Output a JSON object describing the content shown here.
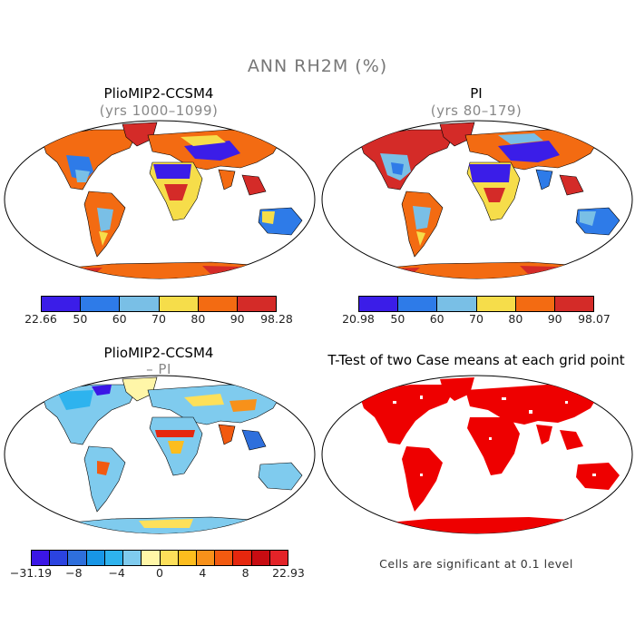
{
  "figure_title": "ANN RH2M (%)",
  "panels": {
    "top_left": {
      "title": "PlioMIP2-CCSM4",
      "subtitle": "(yrs 1000–1099)",
      "colorbar": {
        "colors": [
          "#3b1de8",
          "#2e7be8",
          "#79bfe6",
          "#f6dd4a",
          "#f36b12",
          "#d42b28"
        ],
        "ticks": [
          "22.66",
          "50",
          "60",
          "70",
          "80",
          "90",
          "98.28"
        ]
      }
    },
    "top_right": {
      "title": "PI",
      "subtitle": "(yrs 80–179)",
      "colorbar": {
        "colors": [
          "#3b1de8",
          "#2e7be8",
          "#79bfe6",
          "#f6dd4a",
          "#f36b12",
          "#d42b28"
        ],
        "ticks": [
          "20.98",
          "50",
          "60",
          "70",
          "80",
          "90",
          "98.07"
        ]
      }
    },
    "bottom_left": {
      "title": "PlioMIP2-CCSM4",
      "subtitle": "– PI",
      "colorbar": {
        "colors": [
          "#3b16e6",
          "#2b43e0",
          "#2e6fdc",
          "#1896e6",
          "#2eb3ee",
          "#7fcbee",
          "#fff6a8",
          "#fde05a",
          "#fcbd1e",
          "#f8911a",
          "#f25a10",
          "#e5270e",
          "#c80c12",
          "#e32328"
        ],
        "ticks": [
          "−31.19",
          "−8",
          "−4",
          "0",
          "4",
          "8",
          "22.93"
        ]
      }
    },
    "bottom_right": {
      "title": "T-Test of two Case means at each grid point",
      "note": "Cells are significant at 0.1 level"
    }
  },
  "colors": {
    "ocean": "#ffffff",
    "significant": "#ee0000",
    "coast": "#000000"
  }
}
